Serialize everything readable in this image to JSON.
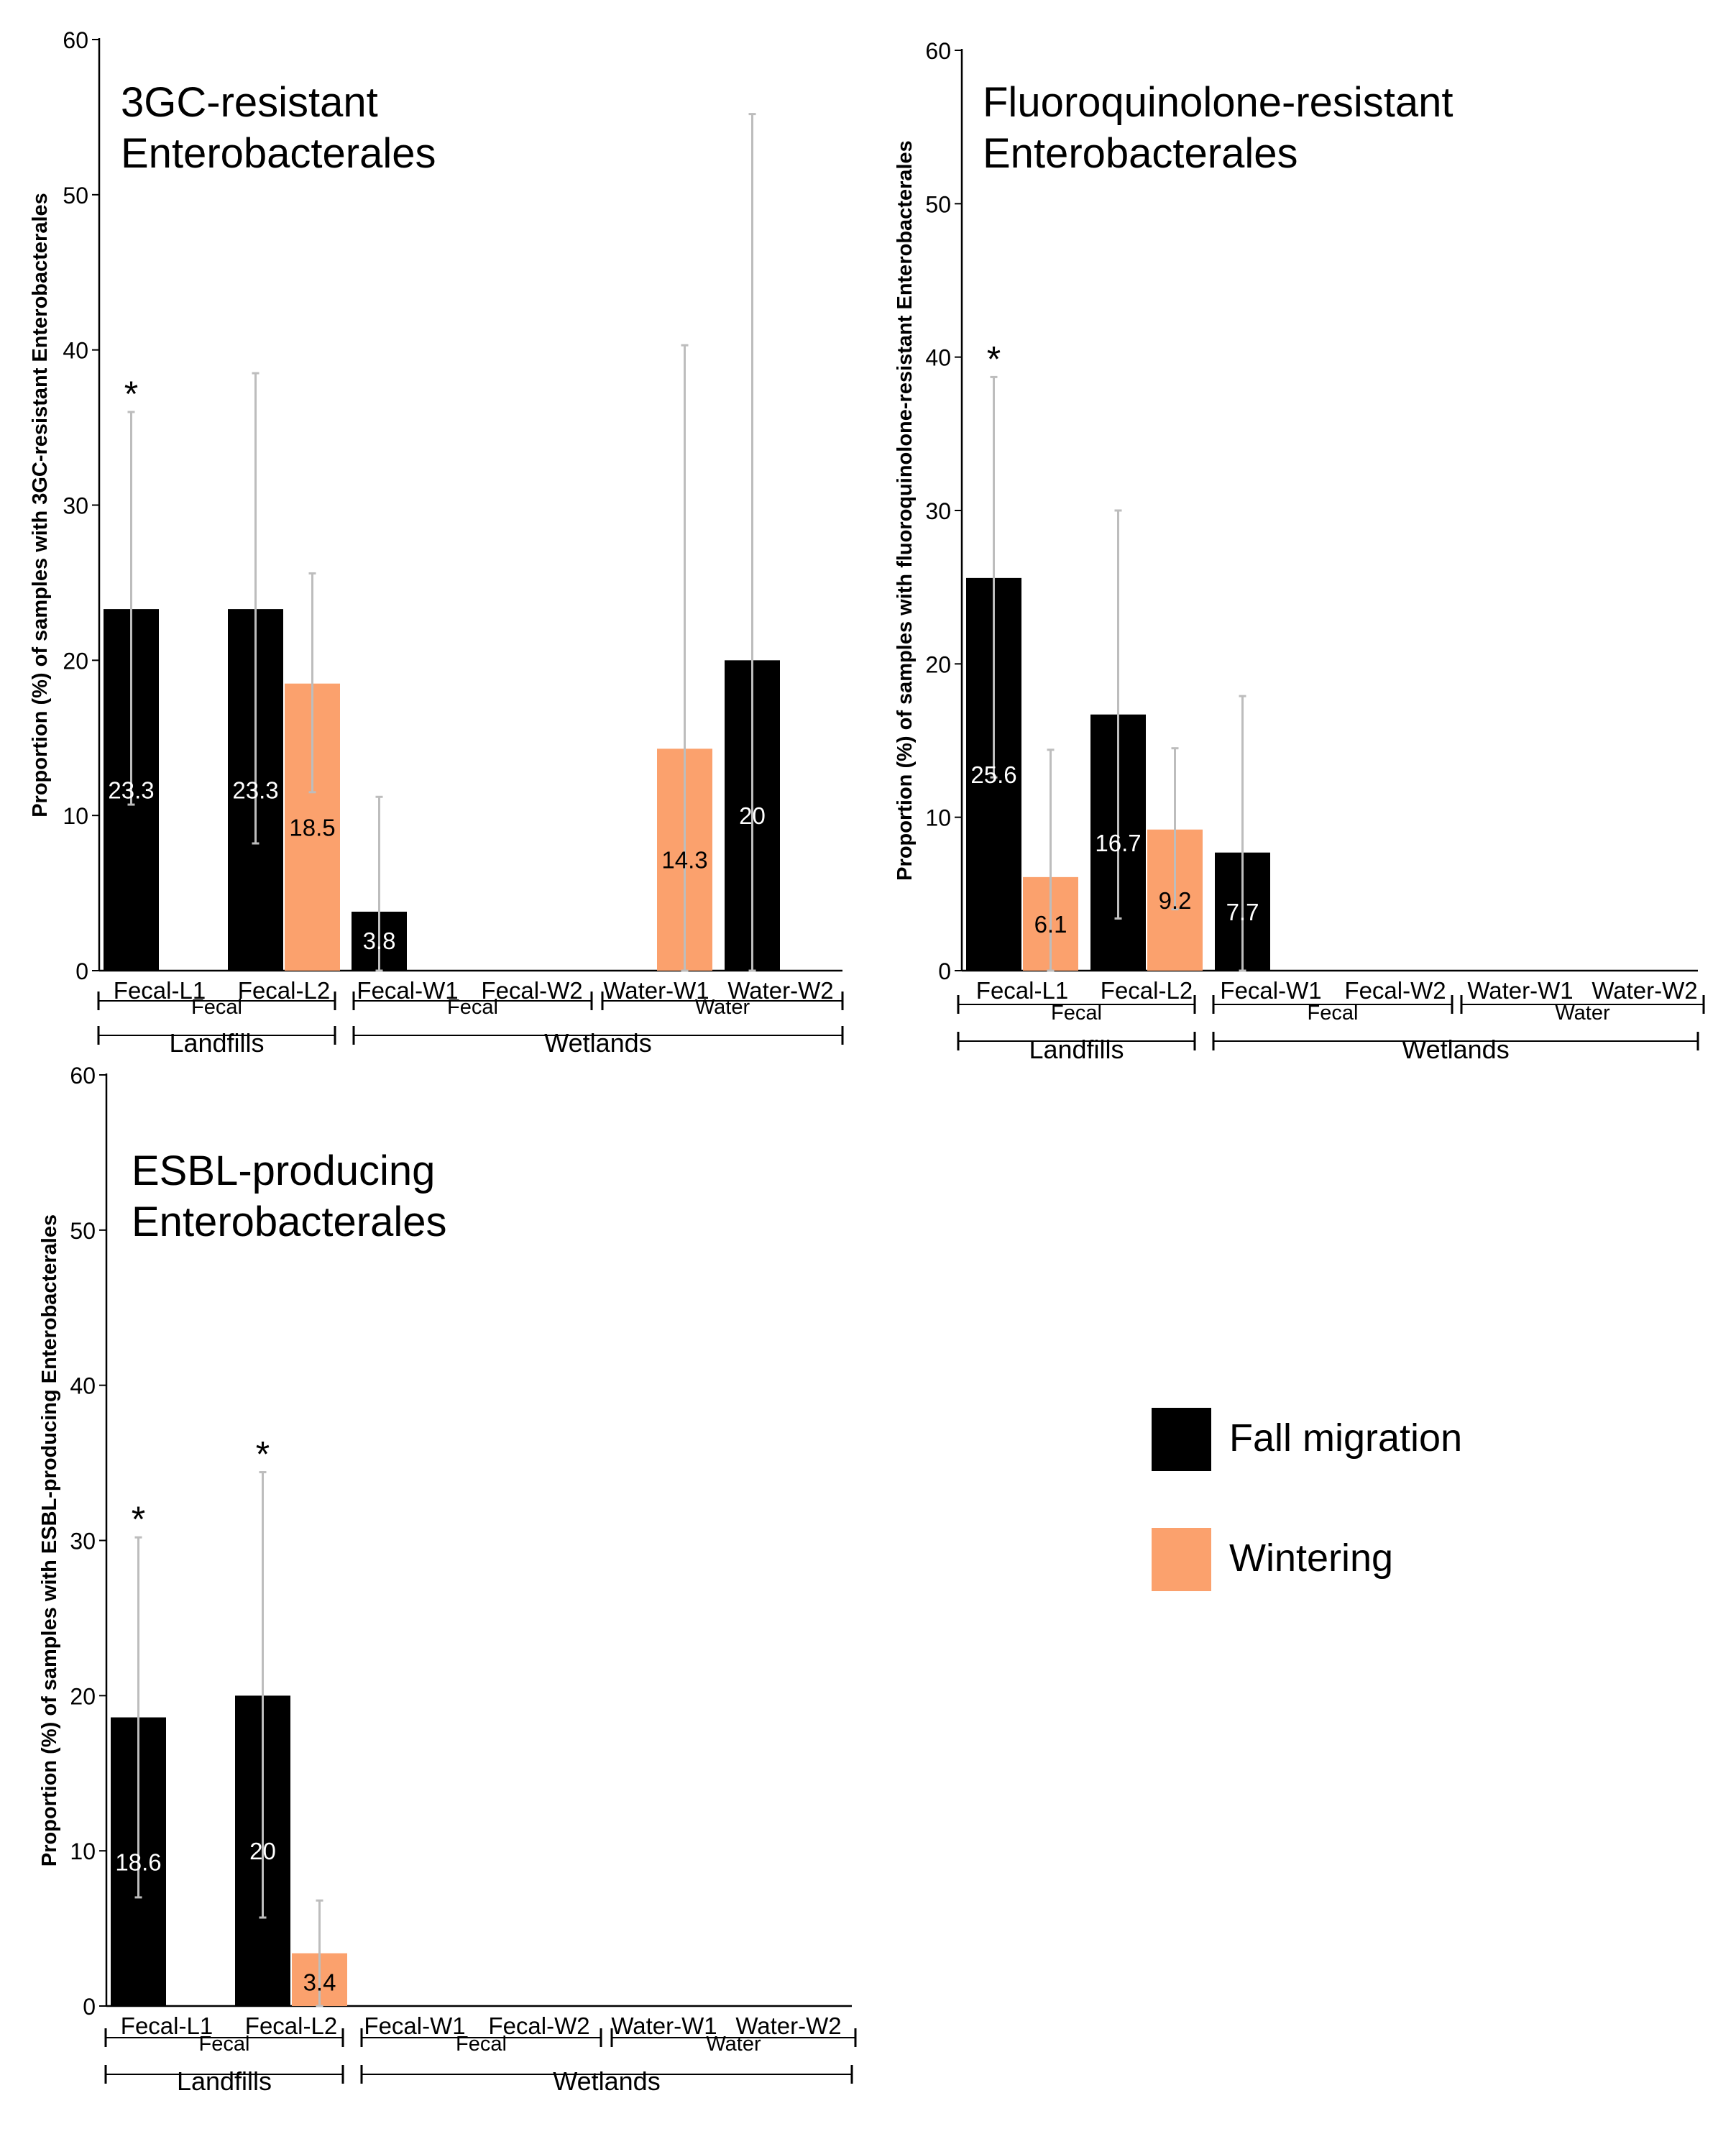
{
  "colors": {
    "fall": "#000000",
    "winter": "#FBA16D",
    "error": "#BDBDBD",
    "axis": "#000000"
  },
  "legend": [
    {
      "label": "Fall migration",
      "color": "#000000"
    },
    {
      "label": "Wintering",
      "color": "#FBA16D"
    }
  ],
  "chart_data": [
    {
      "type": "bar",
      "title": "3GC-resistant Enterobacterales",
      "title_lines": [
        "3GC-resistant",
        "Enterobacterales"
      ],
      "ylabel": "Proportion (%) of samples with 3GC-resistant Enterobacterales",
      "ylim": [
        0,
        60
      ],
      "yticks": [
        0,
        10,
        20,
        30,
        40,
        50,
        60
      ],
      "categories": [
        "Fecal-L1",
        "Fecal-L2",
        "Fecal-W1",
        "Fecal-W2",
        "Water-W1",
        "Water-W2"
      ],
      "sample_groups": [
        {
          "label": "Fecal",
          "span": [
            0,
            1
          ]
        },
        {
          "label": "Fecal",
          "span": [
            2,
            3
          ]
        },
        {
          "label": "Water",
          "span": [
            4,
            5
          ]
        }
      ],
      "site_groups": [
        {
          "label": "Landfills",
          "span": [
            0,
            1
          ]
        },
        {
          "label": "Wetlands",
          "span": [
            2,
            5
          ]
        }
      ],
      "series": [
        {
          "name": "Fall migration",
          "values": [
            23.3,
            23.3,
            3.8,
            0,
            0,
            20
          ],
          "labels": [
            "23.3",
            "23.3",
            "3.8",
            "",
            "",
            "20"
          ],
          "err_low": [
            10.7,
            8.2,
            0,
            null,
            null,
            0
          ],
          "err_high": [
            36,
            38.5,
            11.2,
            null,
            null,
            55.2
          ]
        },
        {
          "name": "Wintering",
          "values": [
            0,
            18.5,
            0,
            0,
            14.3,
            0
          ],
          "labels": [
            "",
            "18.5",
            "",
            "",
            "14.3",
            ""
          ],
          "err_low": [
            null,
            11.5,
            null,
            null,
            0,
            null
          ],
          "err_high": [
            null,
            25.6,
            null,
            null,
            40.3,
            null
          ]
        }
      ],
      "annotations": [
        {
          "text": "*",
          "category": 0
        }
      ]
    },
    {
      "type": "bar",
      "title": "Fluoroquinolone-resistant Enterobacterales",
      "title_lines": [
        "Fluoroquinolone-resistant",
        "Enterobacterales"
      ],
      "ylabel": "Proportion (%) of samples with fluoroquinolone-resistant Enterobacterales",
      "ylim": [
        0,
        60
      ],
      "yticks": [
        0,
        10,
        20,
        30,
        40,
        50,
        60
      ],
      "categories": [
        "Fecal-L1",
        "Fecal-L2",
        "Fecal-W1",
        "Fecal-W2",
        "Water-W1",
        "Water-W2"
      ],
      "sample_groups": [
        {
          "label": "Fecal",
          "span": [
            0,
            1
          ]
        },
        {
          "label": "Fecal",
          "span": [
            2,
            3
          ]
        },
        {
          "label": "Water",
          "span": [
            4,
            5
          ]
        }
      ],
      "site_groups": [
        {
          "label": "Landfills",
          "span": [
            0,
            1
          ]
        },
        {
          "label": "Wetlands",
          "span": [
            2,
            5
          ]
        }
      ],
      "series": [
        {
          "name": "Fall migration",
          "values": [
            25.6,
            16.7,
            7.7,
            0,
            0,
            0
          ],
          "labels": [
            "25.6",
            "16.7",
            "7.7",
            "",
            "",
            ""
          ],
          "err_low": [
            12.6,
            3.4,
            0,
            null,
            null,
            null
          ],
          "err_high": [
            38.7,
            30,
            17.9,
            null,
            null,
            null
          ]
        },
        {
          "name": "Wintering",
          "values": [
            6.1,
            9.2,
            0,
            0,
            0,
            0
          ],
          "labels": [
            "6.1",
            "9.2",
            "",
            "",
            "",
            ""
          ],
          "err_low": [
            0,
            4,
            null,
            null,
            null,
            null
          ],
          "err_high": [
            14.4,
            14.5,
            null,
            null,
            null,
            null
          ]
        }
      ],
      "annotations": [
        {
          "text": "*",
          "category": 0
        }
      ]
    },
    {
      "type": "bar",
      "title": "ESBL-producing Enterobacterales",
      "title_lines": [
        "ESBL-producing",
        "Enterobacterales"
      ],
      "ylabel": "Proportion (%) of samples with ESBL-producing Enterobacterales",
      "ylim": [
        0,
        60
      ],
      "yticks": [
        0,
        10,
        20,
        30,
        40,
        50,
        60
      ],
      "categories": [
        "Fecal-L1",
        "Fecal-L2",
        "Fecal-W1",
        "Fecal-W2",
        "Water-W1",
        "Water-W2"
      ],
      "sample_groups": [
        {
          "label": "Fecal",
          "span": [
            0,
            1
          ]
        },
        {
          "label": "Fecal",
          "span": [
            2,
            3
          ]
        },
        {
          "label": "Water",
          "span": [
            4,
            5
          ]
        }
      ],
      "site_groups": [
        {
          "label": "Landfills",
          "span": [
            0,
            1
          ]
        },
        {
          "label": "Wetlands",
          "span": [
            2,
            5
          ]
        }
      ],
      "series": [
        {
          "name": "Fall migration",
          "values": [
            18.6,
            20,
            0,
            0,
            0,
            0
          ],
          "labels": [
            "18.6",
            "20",
            "",
            "",
            "",
            ""
          ],
          "err_low": [
            7,
            5.7,
            null,
            null,
            null,
            null
          ],
          "err_high": [
            30.2,
            34.4,
            null,
            null,
            null,
            null
          ]
        },
        {
          "name": "Wintering",
          "values": [
            0,
            3.4,
            0,
            0,
            0,
            0
          ],
          "labels": [
            "",
            "3.4",
            "",
            "",
            "",
            ""
          ],
          "err_low": [
            null,
            0,
            null,
            null,
            null,
            null
          ],
          "err_high": [
            null,
            6.8,
            null,
            null,
            null,
            null
          ]
        }
      ],
      "annotations": [
        {
          "text": "*",
          "category": 0
        },
        {
          "text": "*",
          "category": 1
        }
      ]
    }
  ]
}
